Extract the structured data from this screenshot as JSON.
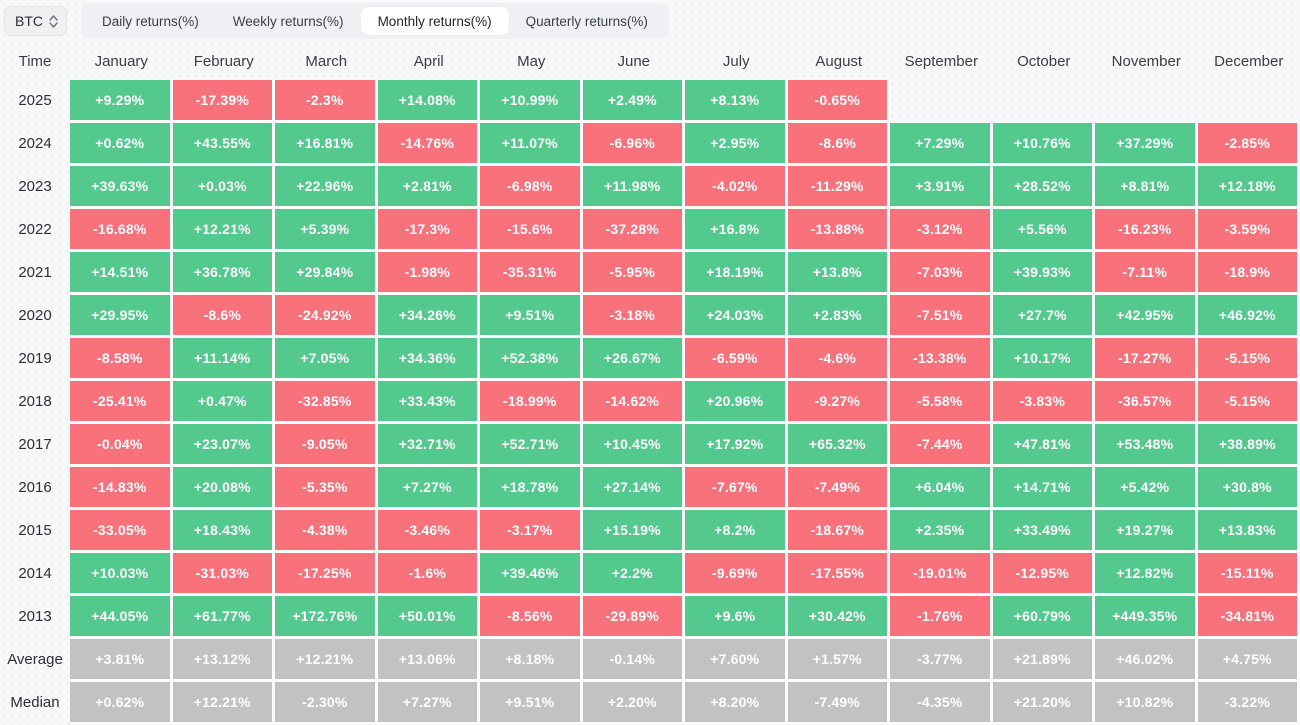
{
  "toolbar": {
    "symbol_selector": {
      "label": "BTC"
    },
    "tabs": [
      {
        "label": "Daily returns(%)",
        "active": false
      },
      {
        "label": "Weekly returns(%)",
        "active": false
      },
      {
        "label": "Monthly returns(%)",
        "active": true
      },
      {
        "label": "Quarterly returns(%)",
        "active": false
      }
    ]
  },
  "colors": {
    "positive_cell": "#54c98d",
    "negative_cell": "#f8717b",
    "neutral_cell": "#c2c2c2",
    "page_background": "#f7f8f9",
    "tab_container": "#eef0f3",
    "active_tab": "#ffffff"
  },
  "chart_data": {
    "type": "heatmap",
    "title": "BTC Monthly returns(%)",
    "legend_position": "none",
    "columns": [
      "Time",
      "January",
      "February",
      "March",
      "April",
      "May",
      "June",
      "July",
      "August",
      "September",
      "October",
      "November",
      "December"
    ],
    "rows": [
      {
        "label": "2025",
        "style": "signed",
        "cells": [
          "+9.29%",
          "-17.39%",
          "-2.3%",
          "+14.08%",
          "+10.99%",
          "+2.49%",
          "+8.13%",
          "-0.65%",
          null,
          null,
          null,
          null
        ]
      },
      {
        "label": "2024",
        "style": "signed",
        "cells": [
          "+0.62%",
          "+43.55%",
          "+16.81%",
          "-14.76%",
          "+11.07%",
          "-6.96%",
          "+2.95%",
          "-8.6%",
          "+7.29%",
          "+10.76%",
          "+37.29%",
          "-2.85%"
        ]
      },
      {
        "label": "2023",
        "style": "signed",
        "cells": [
          "+39.63%",
          "+0.03%",
          "+22.96%",
          "+2.81%",
          "-6.98%",
          "+11.98%",
          "-4.02%",
          "-11.29%",
          "+3.91%",
          "+28.52%",
          "+8.81%",
          "+12.18%"
        ]
      },
      {
        "label": "2022",
        "style": "signed",
        "cells": [
          "-16.68%",
          "+12.21%",
          "+5.39%",
          "-17.3%",
          "-15.6%",
          "-37.28%",
          "+16.8%",
          "-13.88%",
          "-3.12%",
          "+5.56%",
          "-16.23%",
          "-3.59%"
        ]
      },
      {
        "label": "2021",
        "style": "signed",
        "cells": [
          "+14.51%",
          "+36.78%",
          "+29.84%",
          "-1.98%",
          "-35.31%",
          "-5.95%",
          "+18.19%",
          "+13.8%",
          "-7.03%",
          "+39.93%",
          "-7.11%",
          "-18.9%"
        ]
      },
      {
        "label": "2020",
        "style": "signed",
        "cells": [
          "+29.95%",
          "-8.6%",
          "-24.92%",
          "+34.26%",
          "+9.51%",
          "-3.18%",
          "+24.03%",
          "+2.83%",
          "-7.51%",
          "+27.7%",
          "+42.95%",
          "+46.92%"
        ]
      },
      {
        "label": "2019",
        "style": "signed",
        "cells": [
          "-8.58%",
          "+11.14%",
          "+7.05%",
          "+34.36%",
          "+52.38%",
          "+26.67%",
          "-6.59%",
          "-4.6%",
          "-13.38%",
          "+10.17%",
          "-17.27%",
          "-5.15%"
        ]
      },
      {
        "label": "2018",
        "style": "signed",
        "cells": [
          "-25.41%",
          "+0.47%",
          "-32.85%",
          "+33.43%",
          "-18.99%",
          "-14.62%",
          "+20.96%",
          "-9.27%",
          "-5.58%",
          "-3.83%",
          "-36.57%",
          "-5.15%"
        ]
      },
      {
        "label": "2017",
        "style": "signed",
        "cells": [
          "-0.04%",
          "+23.07%",
          "-9.05%",
          "+32.71%",
          "+52.71%",
          "+10.45%",
          "+17.92%",
          "+65.32%",
          "-7.44%",
          "+47.81%",
          "+53.48%",
          "+38.89%"
        ]
      },
      {
        "label": "2016",
        "style": "signed",
        "cells": [
          "-14.83%",
          "+20.08%",
          "-5.35%",
          "+7.27%",
          "+18.78%",
          "+27.14%",
          "-7.67%",
          "-7.49%",
          "+6.04%",
          "+14.71%",
          "+5.42%",
          "+30.8%"
        ]
      },
      {
        "label": "2015",
        "style": "signed",
        "cells": [
          "-33.05%",
          "+18.43%",
          "-4.38%",
          "-3.46%",
          "-3.17%",
          "+15.19%",
          "+8.2%",
          "-18.67%",
          "+2.35%",
          "+33.49%",
          "+19.27%",
          "+13.83%"
        ]
      },
      {
        "label": "2014",
        "style": "signed",
        "cells": [
          "+10.03%",
          "-31.03%",
          "-17.25%",
          "-1.6%",
          "+39.46%",
          "+2.2%",
          "-9.69%",
          "-17.55%",
          "-19.01%",
          "-12.95%",
          "+12.82%",
          "-15.11%"
        ]
      },
      {
        "label": "2013",
        "style": "signed",
        "cells": [
          "+44.05%",
          "+61.77%",
          "+172.76%",
          "+50.01%",
          "-8.56%",
          "-29.89%",
          "+9.6%",
          "+30.42%",
          "-1.76%",
          "+60.79%",
          "+449.35%",
          "-34.81%"
        ]
      },
      {
        "label": "Average",
        "style": "gray",
        "cells": [
          "+3.81%",
          "+13.12%",
          "+12.21%",
          "+13.06%",
          "+8.18%",
          "-0.14%",
          "+7.60%",
          "+1.57%",
          "-3.77%",
          "+21.89%",
          "+46.02%",
          "+4.75%"
        ]
      },
      {
        "label": "Median",
        "style": "gray",
        "cells": [
          "+0.62%",
          "+12.21%",
          "-2.30%",
          "+7.27%",
          "+9.51%",
          "+2.20%",
          "+8.20%",
          "-7.49%",
          "-4.35%",
          "+21.20%",
          "+10.82%",
          "-3.22%"
        ]
      }
    ]
  }
}
